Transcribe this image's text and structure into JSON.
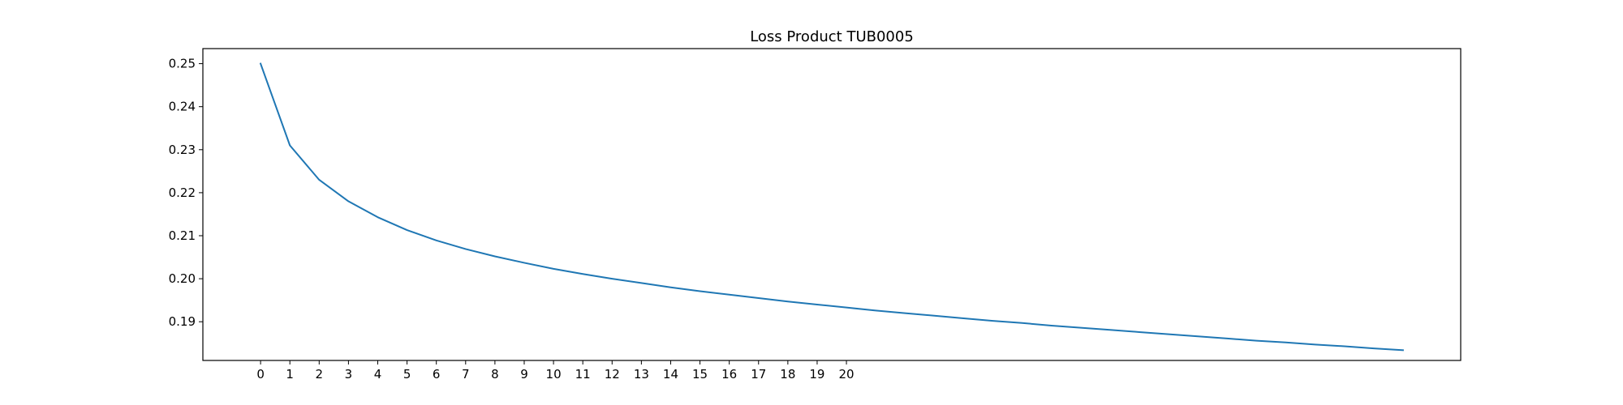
{
  "chart_data": {
    "type": "line",
    "title": "Loss Product TUB0005",
    "xlabel": "",
    "ylabel": "",
    "x_ticks": [
      0,
      1,
      2,
      3,
      4,
      5,
      6,
      7,
      8,
      9,
      10,
      11,
      12,
      13,
      14,
      15,
      16,
      17,
      18,
      19,
      20
    ],
    "y_ticks": [
      "0.19",
      "0.20",
      "0.21",
      "0.22",
      "0.23",
      "0.24",
      "0.25"
    ],
    "xlim": [
      -1.97,
      40.97
    ],
    "ylim": [
      0.181,
      0.2535
    ],
    "grid": false,
    "series": [
      {
        "color": "#1f77b4",
        "x": [
          0,
          1,
          2,
          3,
          4,
          5,
          6,
          7,
          8,
          9,
          10,
          11,
          12,
          13,
          14,
          15,
          16,
          17,
          18,
          19,
          20,
          21,
          22,
          23,
          24,
          25,
          26,
          27,
          28,
          29,
          30,
          31,
          32,
          33,
          34,
          35,
          36,
          37,
          38,
          39
        ],
        "y": [
          0.25,
          0.231,
          0.223,
          0.218,
          0.2143,
          0.2113,
          0.2089,
          0.2069,
          0.2052,
          0.2037,
          0.2023,
          0.2011,
          0.2,
          0.199,
          0.198,
          0.1971,
          0.1963,
          0.1955,
          0.1947,
          0.194,
          0.1933,
          0.1926,
          0.192,
          0.1914,
          0.1908,
          0.1902,
          0.1897,
          0.1891,
          0.1886,
          0.1881,
          0.1876,
          0.1871,
          0.1866,
          0.1861,
          0.1856,
          0.1852,
          0.1847,
          0.1843,
          0.1838,
          0.1834
        ]
      }
    ]
  }
}
